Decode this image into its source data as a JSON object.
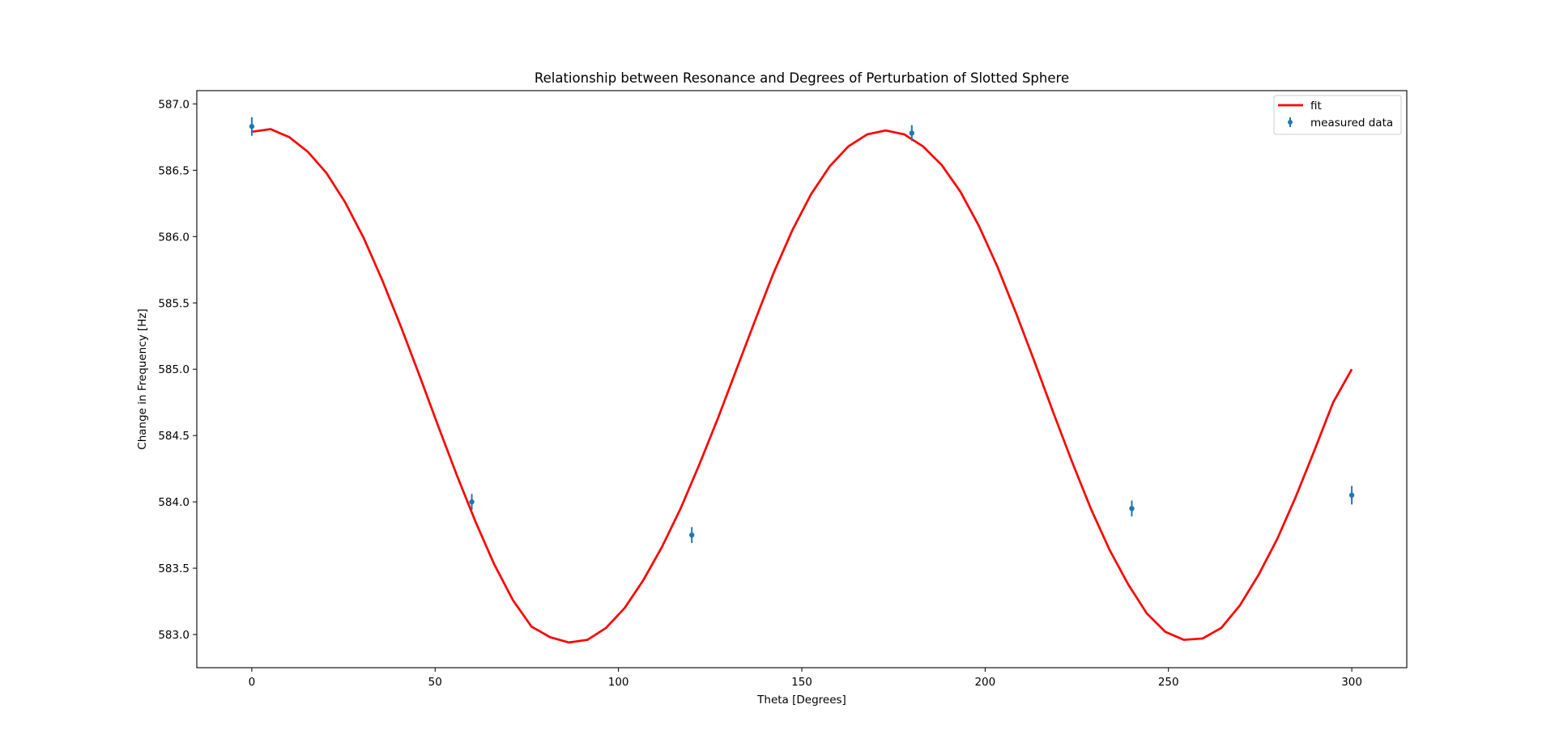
{
  "chart_data": {
    "type": "line",
    "title": "Relationship between Resonance and Degrees of Perturbation of Slotted Sphere",
    "xlabel": "Theta [Degrees]",
    "ylabel": "Change in Frequency [Hz]",
    "xlim": [
      -15,
      315
    ],
    "ylim": [
      582.75,
      587.1
    ],
    "xticks": [
      0,
      50,
      100,
      150,
      200,
      250,
      300
    ],
    "xtick_labels": [
      "0",
      "50",
      "100",
      "150",
      "200",
      "250",
      "300"
    ],
    "yticks": [
      583.0,
      583.5,
      584.0,
      584.5,
      585.0,
      585.5,
      586.0,
      586.5,
      587.0
    ],
    "ytick_labels": [
      "583.0",
      "583.5",
      "584.0",
      "584.5",
      "585.0",
      "585.5",
      "586.0",
      "586.5",
      "587.0"
    ],
    "grid": false,
    "legend_position": "top-right",
    "series": [
      {
        "name": "fit",
        "kind": "line",
        "color": "#ff0000",
        "x": [
          0,
          5.08,
          10.17,
          15.25,
          20.34,
          25.42,
          30.51,
          35.59,
          40.68,
          45.76,
          50.85,
          55.93,
          61.02,
          66.1,
          71.19,
          76.27,
          81.36,
          86.44,
          91.53,
          96.61,
          101.69,
          106.78,
          111.86,
          116.95,
          122.03,
          127.12,
          132.2,
          137.29,
          142.37,
          147.46,
          152.54,
          157.63,
          162.71,
          167.8,
          172.88,
          177.97,
          183.05,
          188.14,
          193.22,
          198.31,
          203.39,
          208.47,
          213.56,
          218.64,
          223.73,
          228.81,
          233.9,
          238.98,
          244.07,
          249.15,
          254.24,
          259.32,
          264.41,
          269.49,
          274.58,
          279.66,
          284.75,
          289.83,
          294.92,
          300
        ],
        "y": [
          586.79,
          586.81,
          586.75,
          586.64,
          586.48,
          586.26,
          585.99,
          585.67,
          585.32,
          584.95,
          584.57,
          584.2,
          583.85,
          583.53,
          583.26,
          583.06,
          582.98,
          582.94,
          582.96,
          583.05,
          583.2,
          583.41,
          583.66,
          583.95,
          584.28,
          584.63,
          585.0,
          585.37,
          585.73,
          586.05,
          586.32,
          586.53,
          586.68,
          586.77,
          586.8,
          586.77,
          586.68,
          586.54,
          586.34,
          586.08,
          585.77,
          585.42,
          585.05,
          584.67,
          584.3,
          583.95,
          583.64,
          583.38,
          583.16,
          583.02,
          582.96,
          582.97,
          583.05,
          583.22,
          583.45,
          583.72,
          584.04,
          584.39,
          584.75,
          585.0
        ]
      },
      {
        "name": "measured data",
        "kind": "errorbar",
        "color": "#1f77b4",
        "x": [
          0,
          60,
          120,
          180,
          240,
          300
        ],
        "y": [
          586.83,
          584.0,
          583.75,
          586.78,
          583.95,
          584.05
        ],
        "yerr": [
          0.07,
          0.06,
          0.06,
          0.06,
          0.06,
          0.07
        ]
      }
    ]
  }
}
